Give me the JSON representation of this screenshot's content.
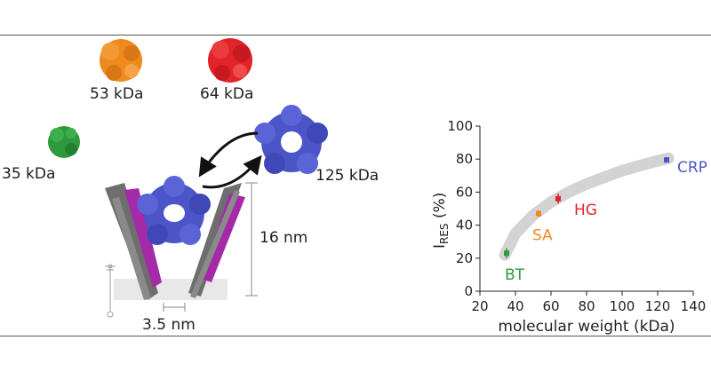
{
  "labels": {
    "orange_mw": "53 kDa",
    "red_mw": "64 kDa",
    "green_mw": "35 kDa",
    "blue_mw": "125 kDa",
    "height": "16 nm",
    "width": "3.5 nm"
  },
  "colors": {
    "orange": "#ef8a1f",
    "red": "#e0242a",
    "green": "#2e9a3e",
    "blue": "#4b55c8",
    "magenta": "#a52aa8",
    "gray": "#6e6e6e",
    "trend": "#d3d3d3"
  },
  "chart_data": {
    "type": "scatter",
    "title": "",
    "xlabel": "molecular weight (kDa)",
    "ylabel_main": "I",
    "ylabel_sub": "RES",
    "ylabel_tail": " (%)",
    "xlim": [
      20,
      140
    ],
    "ylim": [
      0,
      100
    ],
    "xticks": [
      20,
      40,
      60,
      80,
      100,
      120,
      140
    ],
    "yticks": [
      0,
      20,
      40,
      60,
      80,
      100
    ],
    "grid": false,
    "points": [
      {
        "label": "BT",
        "x": 35,
        "y": 23,
        "err": 3,
        "color": "#2e9a3e"
      },
      {
        "label": "SA",
        "x": 53,
        "y": 47,
        "err": 2,
        "color": "#ef8a1f"
      },
      {
        "label": "HG",
        "x": 64,
        "y": 56,
        "err": 3,
        "color": "#e0242a"
      },
      {
        "label": "CRP",
        "x": 125,
        "y": 79.5,
        "err": 1.5,
        "color": "#4b55c8"
      }
    ],
    "trend": [
      [
        34,
        22
      ],
      [
        40,
        35
      ],
      [
        50,
        46
      ],
      [
        60,
        54
      ],
      [
        70,
        60
      ],
      [
        80,
        65
      ],
      [
        90,
        69
      ],
      [
        100,
        73
      ],
      [
        110,
        76
      ],
      [
        120,
        79
      ],
      [
        126,
        80.5
      ]
    ]
  }
}
